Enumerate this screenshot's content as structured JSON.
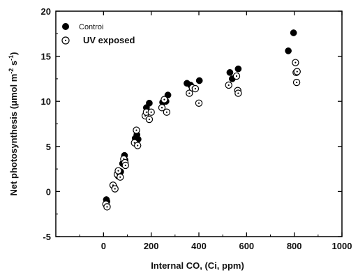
{
  "chart_data": {
    "type": "scatter",
    "xlabel": "Internal CO, (Ci, ppm)",
    "ylabel": "Net photosynthesis",
    "ylabel_unit_parts": {
      "paren_open": "(",
      "mu": "μ",
      "mol": "mol m",
      "sup1": "-2",
      "mid": " s",
      "sup2": "-1",
      "paren_close": ")"
    },
    "xlim": [
      -200,
      1000
    ],
    "ylim": [
      -5,
      20
    ],
    "x_ticks": [
      0,
      200,
      400,
      600,
      800,
      1000
    ],
    "y_ticks": [
      -5,
      0,
      5,
      10,
      15,
      20
    ],
    "grid": false,
    "legend_position": "top-left",
    "series": [
      {
        "name": "Controi",
        "marker": "filled-circle",
        "color": "#000000",
        "points": [
          [
            12,
            -0.9
          ],
          [
            14,
            -1.1
          ],
          [
            45,
            0.5
          ],
          [
            62,
            1.7
          ],
          [
            72,
            2.2
          ],
          [
            80,
            3.1
          ],
          [
            88,
            4.0
          ],
          [
            90,
            3.5
          ],
          [
            133,
            5.9
          ],
          [
            140,
            6.3
          ],
          [
            145,
            5.8
          ],
          [
            180,
            9.3
          ],
          [
            192,
            9.8
          ],
          [
            248,
            9.9
          ],
          [
            262,
            10.0
          ],
          [
            270,
            10.7
          ],
          [
            350,
            12.0
          ],
          [
            365,
            11.8
          ],
          [
            402,
            12.3
          ],
          [
            530,
            13.2
          ],
          [
            540,
            12.5
          ],
          [
            565,
            13.6
          ],
          [
            775,
            15.6
          ],
          [
            797,
            17.6
          ]
        ]
      },
      {
        "name": "UV exposed",
        "marker": "open-circle-dot",
        "color": "#000000",
        "points": [
          [
            10,
            -1.4
          ],
          [
            15,
            -1.7
          ],
          [
            40,
            0.7
          ],
          [
            48,
            0.3
          ],
          [
            58,
            1.9
          ],
          [
            62,
            2.3
          ],
          [
            70,
            1.6
          ],
          [
            85,
            3.6
          ],
          [
            90,
            3.2
          ],
          [
            92,
            2.9
          ],
          [
            130,
            5.4
          ],
          [
            138,
            6.8
          ],
          [
            143,
            5.1
          ],
          [
            175,
            8.4
          ],
          [
            180,
            8.8
          ],
          [
            192,
            8.0
          ],
          [
            200,
            8.8
          ],
          [
            245,
            9.3
          ],
          [
            255,
            10.2
          ],
          [
            265,
            8.8
          ],
          [
            360,
            10.9
          ],
          [
            373,
            11.5
          ],
          [
            385,
            11.4
          ],
          [
            400,
            9.8
          ],
          [
            525,
            11.8
          ],
          [
            558,
            12.8
          ],
          [
            563,
            11.2
          ],
          [
            565,
            10.9
          ],
          [
            805,
            14.3
          ],
          [
            808,
            13.2
          ],
          [
            810,
            12.1
          ],
          [
            812,
            13.3
          ]
        ]
      }
    ]
  }
}
